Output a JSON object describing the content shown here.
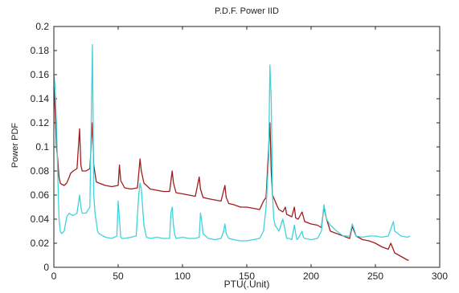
{
  "chart_data": {
    "type": "line",
    "title": "P.D.F. Power IID",
    "xlabel": "PTU(.Unit)",
    "ylabel": "Power PDF",
    "xlim": [
      0,
      300
    ],
    "ylim": [
      0,
      0.2
    ],
    "xticks": [
      0,
      50,
      100,
      150,
      200,
      250,
      300
    ],
    "yticks": [
      0,
      0.02,
      0.04,
      0.06,
      0.08,
      0.1,
      0.12,
      0.14,
      0.16,
      0.18,
      0.2
    ],
    "xtick_labels": [
      "0",
      "50",
      "100",
      "150",
      "200",
      "250",
      "300"
    ],
    "ytick_labels": [
      "0",
      "0.02",
      "0.04",
      "0.06",
      "0.08",
      "0.1",
      "0.12",
      "0.14",
      "0.16",
      "0.18",
      "0.2"
    ],
    "grid": false,
    "series": [
      {
        "color": "#a31c1c",
        "x": [
          0,
          1,
          2,
          3,
          4,
          5,
          6,
          8,
          10,
          12,
          13,
          15,
          18,
          20,
          21,
          22,
          25,
          28,
          30,
          31,
          33,
          35,
          40,
          45,
          50,
          51,
          52,
          55,
          60,
          65,
          67,
          68,
          70,
          75,
          80,
          85,
          90,
          92,
          93,
          95,
          100,
          105,
          110,
          113,
          114,
          116,
          120,
          125,
          130,
          133,
          134,
          136,
          140,
          145,
          150,
          155,
          160,
          163,
          165,
          168,
          169,
          170,
          172,
          174,
          175,
          178,
          180,
          181,
          183,
          185,
          187,
          188,
          190,
          193,
          195,
          200,
          205,
          208,
          210,
          212,
          215,
          220,
          225,
          230,
          232,
          235,
          240,
          245,
          250,
          255,
          260,
          262,
          265,
          270,
          275,
          276
        ],
        "y": [
          0.15,
          0.13,
          0.1,
          0.09,
          0.075,
          0.07,
          0.069,
          0.068,
          0.07,
          0.075,
          0.078,
          0.08,
          0.082,
          0.115,
          0.085,
          0.08,
          0.08,
          0.082,
          0.12,
          0.085,
          0.071,
          0.07,
          0.068,
          0.067,
          0.068,
          0.085,
          0.072,
          0.066,
          0.065,
          0.066,
          0.09,
          0.08,
          0.07,
          0.065,
          0.064,
          0.063,
          0.063,
          0.08,
          0.07,
          0.062,
          0.061,
          0.06,
          0.059,
          0.075,
          0.065,
          0.058,
          0.057,
          0.056,
          0.055,
          0.068,
          0.058,
          0.053,
          0.052,
          0.05,
          0.05,
          0.049,
          0.048,
          0.055,
          0.058,
          0.12,
          0.08,
          0.06,
          0.055,
          0.05,
          0.048,
          0.046,
          0.05,
          0.044,
          0.043,
          0.042,
          0.05,
          0.041,
          0.04,
          0.046,
          0.038,
          0.036,
          0.035,
          0.033,
          0.05,
          0.04,
          0.03,
          0.028,
          0.026,
          0.024,
          0.034,
          0.026,
          0.023,
          0.022,
          0.02,
          0.017,
          0.015,
          0.02,
          0.012,
          0.009,
          0.006,
          0.006
        ]
      },
      {
        "color": "#3fd4dc",
        "x": [
          0,
          1,
          2,
          3,
          4,
          5,
          6,
          8,
          10,
          12,
          13,
          15,
          18,
          20,
          21,
          22,
          25,
          28,
          30,
          31,
          32,
          34,
          35,
          40,
          45,
          49,
          50,
          51,
          52,
          53,
          55,
          60,
          64,
          66,
          67,
          68,
          70,
          72,
          75,
          80,
          85,
          90,
          91,
          92,
          93,
          94,
          95,
          100,
          105,
          110,
          113,
          114,
          115,
          116,
          120,
          125,
          130,
          132,
          133,
          134,
          136,
          140,
          145,
          150,
          155,
          160,
          163,
          165,
          167,
          168,
          169,
          170,
          171,
          172,
          175,
          178,
          179,
          180,
          181,
          183,
          185,
          187,
          188,
          189,
          190,
          193,
          194,
          195,
          200,
          205,
          208,
          210,
          212,
          215,
          220,
          225,
          230,
          232,
          234,
          235,
          240,
          245,
          250,
          255,
          260,
          262,
          264,
          265,
          270,
          275,
          277
        ],
        "y": [
          0.16,
          0.15,
          0.12,
          0.08,
          0.04,
          0.03,
          0.028,
          0.03,
          0.042,
          0.045,
          0.044,
          0.043,
          0.045,
          0.06,
          0.05,
          0.045,
          0.045,
          0.05,
          0.185,
          0.06,
          0.045,
          0.03,
          0.028,
          0.025,
          0.024,
          0.026,
          0.055,
          0.04,
          0.025,
          0.024,
          0.024,
          0.025,
          0.026,
          0.06,
          0.07,
          0.065,
          0.035,
          0.025,
          0.024,
          0.025,
          0.024,
          0.024,
          0.045,
          0.05,
          0.035,
          0.027,
          0.024,
          0.025,
          0.024,
          0.024,
          0.025,
          0.045,
          0.038,
          0.028,
          0.024,
          0.023,
          0.024,
          0.03,
          0.036,
          0.028,
          0.024,
          0.023,
          0.022,
          0.022,
          0.023,
          0.024,
          0.03,
          0.05,
          0.09,
          0.168,
          0.14,
          0.06,
          0.04,
          0.035,
          0.03,
          0.04,
          0.035,
          0.03,
          0.024,
          0.024,
          0.023,
          0.035,
          0.028,
          0.023,
          0.024,
          0.03,
          0.025,
          0.024,
          0.023,
          0.024,
          0.03,
          0.052,
          0.04,
          0.035,
          0.03,
          0.026,
          0.026,
          0.036,
          0.03,
          0.026,
          0.025,
          0.026,
          0.026,
          0.025,
          0.026,
          0.032,
          0.038,
          0.03,
          0.026,
          0.025,
          0.026
        ]
      }
    ]
  }
}
